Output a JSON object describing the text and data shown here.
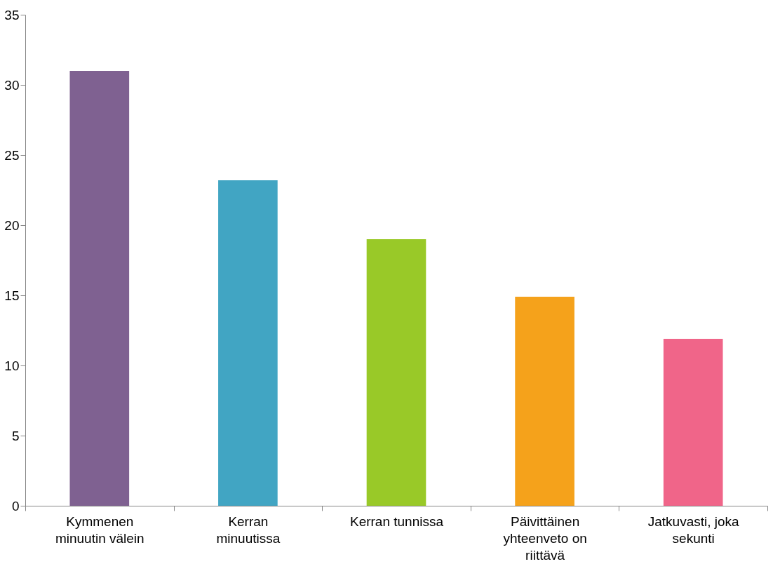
{
  "chart_data": {
    "type": "bar",
    "categories": [
      "Kymmenen minuutin välein",
      "Kerran minuutissa",
      "Kerran tunnissa",
      "Päivittäinen yhteenveto on riittävä",
      "Jatkuvasti, joka sekunti"
    ],
    "values": [
      31,
      23.2,
      19,
      14.9,
      11.9
    ],
    "colors": [
      "#7f6191",
      "#41a5c3",
      "#99c928",
      "#f5a21b",
      "#f06589"
    ],
    "ylim": [
      0,
      35
    ],
    "yticks": [
      0,
      5,
      10,
      15,
      20,
      25,
      30,
      35
    ],
    "grid": false
  }
}
